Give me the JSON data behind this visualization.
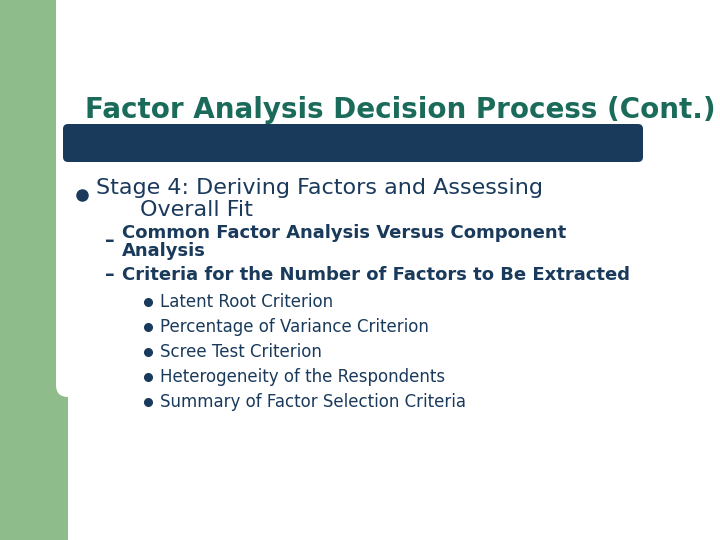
{
  "title": "Factor Analysis Decision Process (Cont.)",
  "title_color": "#1a6b5a",
  "title_fontsize": 20,
  "background_color": "#ffffff",
  "left_panel_color": "#8fbc8b",
  "divider_color": "#1a3a5c",
  "bullet1_color": "#1a3a5c",
  "bullet1_fontsize": 16,
  "sub_bullet_color": "#1a3a5c",
  "sub_bullet_fontsize": 13,
  "sub_sub_bullets": [
    "Latent Root Criterion",
    "Percentage of Variance Criterion",
    "Scree Test Criterion",
    "Heterogeneity of the Respondents",
    "Summary of Factor Selection Criteria"
  ],
  "sub_sub_bullet_color": "#1a3a5c",
  "sub_sub_bullet_fontsize": 12
}
